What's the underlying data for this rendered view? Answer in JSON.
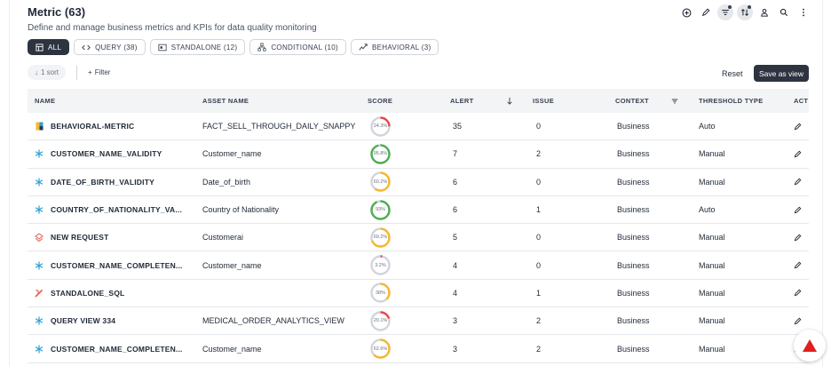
{
  "header": {
    "title": "Metric (63)",
    "subtitle": "Define and manage business metrics and KPIs for data quality monitoring"
  },
  "tabs": [
    {
      "label": "ALL",
      "icon": "grid-icon",
      "active": true
    },
    {
      "label": "QUERY (38)",
      "icon": "code-icon",
      "active": false
    },
    {
      "label": "STANDALONE (12)",
      "icon": "window-icon",
      "active": false
    },
    {
      "label": "CONDITIONAL (10)",
      "icon": "hierarchy-icon",
      "active": false
    },
    {
      "label": "BEHAVIORAL (3)",
      "icon": "behavior-icon",
      "active": false
    }
  ],
  "filters": {
    "sort_label": "1 sort",
    "filter_label": "Filter",
    "reset_label": "Reset",
    "save_label": "Save as view"
  },
  "table": {
    "columns": [
      "NAME",
      "ASSET NAME",
      "SCORE",
      "ALERT",
      "ISSUE",
      "CONTEXT",
      "THRESHOLD TYPE",
      "ACT"
    ],
    "rows": [
      {
        "type": "behavioral",
        "name": "BEHAVIORAL-METRIC",
        "asset": "FACT_SELL_THROUGH_DAILY_SNAPPY",
        "score": 24.3,
        "score_text": "24.3%",
        "alert": "35",
        "issue": "0",
        "context": "Business",
        "threshold": "Auto"
      },
      {
        "type": "snowflake",
        "name": "CUSTOMER_NAME_VALIDITY",
        "asset": "Customer_name",
        "score": 95.8,
        "score_text": "95.8%",
        "alert": "7",
        "issue": "2",
        "context": "Business",
        "threshold": "Manual"
      },
      {
        "type": "snowflake",
        "name": "DATE_OF_BIRTH_VALIDITY",
        "asset": "Date_of_birth",
        "score": 60.2,
        "score_text": "60.2%",
        "alert": "6",
        "issue": "0",
        "context": "Business",
        "threshold": "Manual"
      },
      {
        "type": "snowflake",
        "name": "COUNTRY_OF_NATIONALITY_VA...",
        "asset": "Country of Nationality",
        "score": 93,
        "score_text": "93%",
        "alert": "6",
        "issue": "1",
        "context": "Business",
        "threshold": "Auto"
      },
      {
        "type": "conditional",
        "name": "NEW REQUEST",
        "asset": "Customerai",
        "score": 69.2,
        "score_text": "69.2%",
        "alert": "5",
        "issue": "0",
        "context": "Business",
        "threshold": "Manual"
      },
      {
        "type": "snowflake",
        "name": "CUSTOMER_NAME_COMPLETEN...",
        "asset": "Customer_name",
        "score": 3.2,
        "score_text": "3.2%",
        "alert": "4",
        "issue": "0",
        "context": "Business",
        "threshold": "Manual"
      },
      {
        "type": "standalone",
        "name": "STANDALONE_SQL",
        "asset": "",
        "score": 38,
        "score_text": "38%",
        "alert": "4",
        "issue": "1",
        "context": "Business",
        "threshold": "Manual"
      },
      {
        "type": "snowflake",
        "name": "QUERY VIEW 334",
        "asset": "MEDICAL_ORDER_ANALYTICS_VIEW",
        "score": 20.1,
        "score_text": "20.1%",
        "alert": "3",
        "issue": "2",
        "context": "Business",
        "threshold": "Manual"
      },
      {
        "type": "snowflake",
        "name": "CUSTOMER_NAME_COMPLETEN...",
        "asset": "Customer_name",
        "score": 62.6,
        "score_text": "62.6%",
        "alert": "3",
        "issue": "2",
        "context": "Business",
        "threshold": "Manual"
      }
    ]
  },
  "colors": {
    "accent": "#2d3440",
    "score_low": "#ef4444",
    "score_mid": "#f5b82e",
    "score_high": "#4caf50",
    "track": "#d1d5db",
    "snowflake": "#2b9fd6",
    "fab_icon": "#e11d1d"
  }
}
